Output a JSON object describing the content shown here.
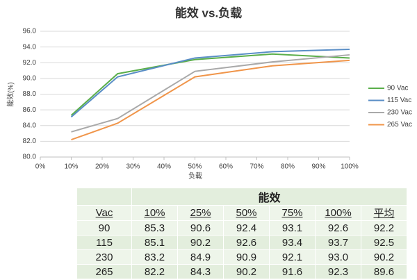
{
  "chart_data": {
    "type": "line",
    "title": "能效 vs.负载",
    "x_label": "负载",
    "y_label": "能效(%)",
    "x": [
      10,
      25,
      50,
      75,
      100
    ],
    "series": [
      {
        "name": "90 Vac",
        "color": "#5aae4a",
        "values": [
          85.3,
          90.6,
          92.4,
          93.1,
          92.6
        ]
      },
      {
        "name": "115 Vac",
        "color": "#5a8ec6",
        "values": [
          85.1,
          90.2,
          92.6,
          93.4,
          93.7
        ]
      },
      {
        "name": "230 Vac",
        "color": "#a9a9a9",
        "values": [
          83.2,
          84.9,
          90.9,
          92.1,
          93.0
        ]
      },
      {
        "name": "265 Vac",
        "color": "#f0954a",
        "values": [
          82.2,
          84.3,
          90.2,
          91.6,
          92.3
        ]
      }
    ],
    "xlim": [
      0,
      100
    ],
    "xticks": [
      {
        "value": 0,
        "label": "0%"
      },
      {
        "value": 10,
        "label": "10%"
      },
      {
        "value": 20,
        "label": "20%"
      },
      {
        "value": 30,
        "label": "30%"
      },
      {
        "value": 40,
        "label": "40%"
      },
      {
        "value": 50,
        "label": "50%"
      },
      {
        "value": 60,
        "label": "60%"
      },
      {
        "value": 70,
        "label": "70%"
      },
      {
        "value": 80,
        "label": "80%"
      },
      {
        "value": 90,
        "label": "90%"
      },
      {
        "value": 100,
        "label": "100%"
      }
    ],
    "ylim": [
      80,
      96
    ],
    "yticks": [
      {
        "value": 80,
        "label": "80.0"
      },
      {
        "value": 82,
        "label": "82.0"
      },
      {
        "value": 84,
        "label": "84.0"
      },
      {
        "value": 86,
        "label": "86.0"
      },
      {
        "value": 88,
        "label": "88.0"
      },
      {
        "value": 90,
        "label": "90.0"
      },
      {
        "value": 92,
        "label": "92.0"
      },
      {
        "value": 94,
        "label": "94.0"
      },
      {
        "value": 96,
        "label": "96.0"
      }
    ],
    "grid": true,
    "legend": "right"
  },
  "table": {
    "group_header": "能效",
    "header": [
      "Vac",
      "10%",
      "25%",
      "50%",
      "75%",
      "100%",
      "平均"
    ],
    "rows": [
      [
        "90",
        "85.3",
        "90.6",
        "92.4",
        "93.1",
        "92.6",
        "92.2"
      ],
      [
        "115",
        "85.1",
        "90.2",
        "92.6",
        "93.4",
        "93.7",
        "92.5"
      ],
      [
        "230",
        "83.2",
        "84.9",
        "90.9",
        "92.1",
        "93.0",
        "90.2"
      ],
      [
        "265",
        "82.2",
        "84.3",
        "90.2",
        "91.6",
        "92.3",
        "89.6"
      ]
    ]
  }
}
